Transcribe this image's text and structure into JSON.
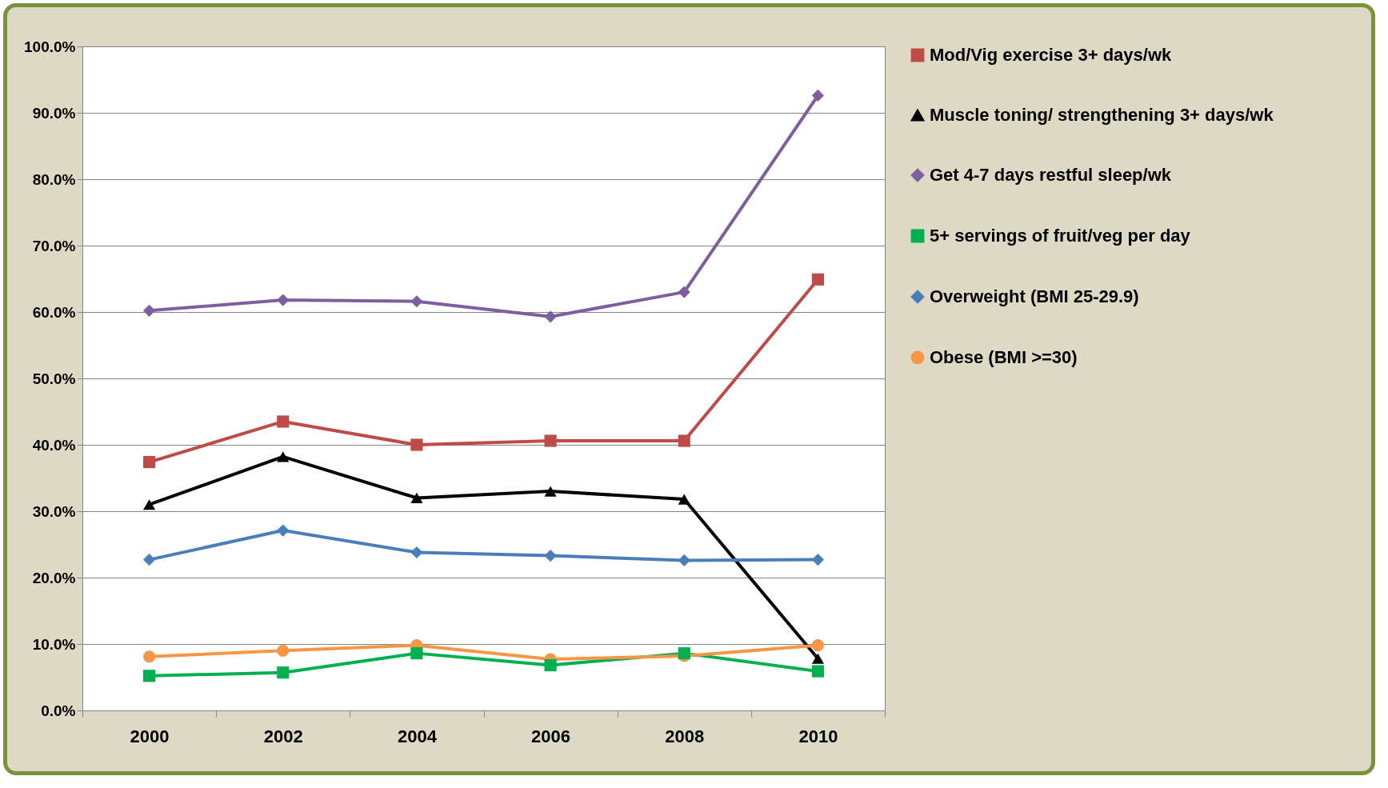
{
  "chart_data": {
    "type": "line",
    "categories": [
      "2000",
      "2002",
      "2004",
      "2006",
      "2008",
      "2010"
    ],
    "series": [
      {
        "name": "Mod/Vig exercise 3+ days/wk",
        "color": "#be4b48",
        "marker": "square",
        "values": [
          37.4,
          43.5,
          40.0,
          40.6,
          40.6,
          64.9
        ]
      },
      {
        "name": "Muscle toning/ strengthening 3+ days/wk",
        "color": "#000000",
        "marker": "triangle",
        "values": [
          31.0,
          38.2,
          32.0,
          33.0,
          31.8,
          7.8
        ]
      },
      {
        "name": "Get 4-7 days restful sleep/wk",
        "color": "#7d5fa0",
        "marker": "diamond",
        "values": [
          60.2,
          61.8,
          61.6,
          59.3,
          63.0,
          92.6
        ]
      },
      {
        "name": "5+ servings of fruit/veg per day",
        "color": "#00b050",
        "marker": "square",
        "values": [
          5.2,
          5.7,
          8.6,
          6.8,
          8.6,
          5.9
        ]
      },
      {
        "name": "Overweight (BMI 25-29.9)",
        "color": "#4a7ebb",
        "marker": "diamond",
        "values": [
          22.7,
          27.1,
          23.8,
          23.3,
          22.6,
          22.7
        ]
      },
      {
        "name": "Obese (BMI >=30)",
        "color": "#f79646",
        "marker": "circle",
        "values": [
          8.1,
          9.0,
          9.8,
          7.7,
          8.2,
          9.8
        ]
      }
    ],
    "ylim": [
      0,
      100
    ],
    "yticks": [
      {
        "value": 0,
        "label": "0.0%"
      },
      {
        "value": 10,
        "label": "10.0%"
      },
      {
        "value": 20,
        "label": "20.0%"
      },
      {
        "value": 30,
        "label": "30.0%"
      },
      {
        "value": 40,
        "label": "40.0%"
      },
      {
        "value": 50,
        "label": "50.0%"
      },
      {
        "value": 60,
        "label": "60.0%"
      },
      {
        "value": 70,
        "label": "70.0%"
      },
      {
        "value": 80,
        "label": "80.0%"
      },
      {
        "value": 90,
        "label": "90.0%"
      },
      {
        "value": 100,
        "label": "100.0%"
      }
    ],
    "grid": "y",
    "legend": "right"
  }
}
